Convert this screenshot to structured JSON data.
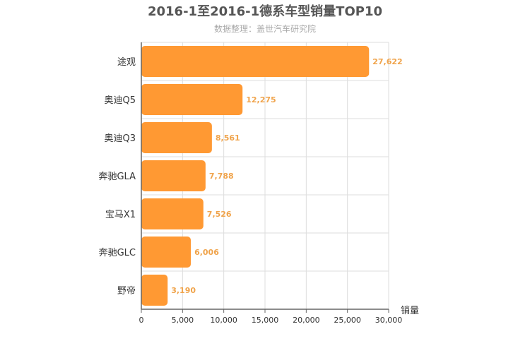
{
  "chart_data": {
    "type": "bar",
    "orientation": "horizontal",
    "title": "2016-1至2016-1德系车型销量TOP10",
    "subtitle": "数据整理：盖世汽车研究院",
    "categories": [
      "途观",
      "奥迪Q5",
      "奥迪Q3",
      "奔驰GLA",
      "宝马X1",
      "奔驰GLC",
      "野帝"
    ],
    "values": [
      27622,
      12275,
      8561,
      7788,
      7526,
      6006,
      3190
    ],
    "value_labels": [
      "27,622",
      "12,275",
      "8,561",
      "7,788",
      "7,526",
      "6,006",
      "3,190"
    ],
    "xlabel": "销量",
    "ylabel": "",
    "xlim": [
      0,
      30000
    ],
    "ticks": [
      0,
      5000,
      10000,
      15000,
      20000,
      25000,
      30000
    ],
    "tick_labels": [
      "0",
      "5,000",
      "10,000",
      "15,000",
      "20,000",
      "25,000",
      "30,000"
    ],
    "grid": true,
    "bar_color": "#ff9933",
    "label_color": "#f0a44c"
  }
}
